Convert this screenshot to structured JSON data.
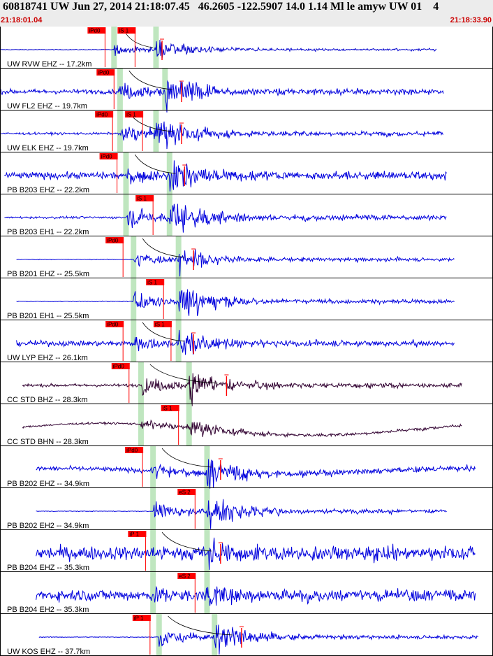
{
  "header": {
    "title": "60818741 UW Jun 27, 2014 21:18:07.45   46.2605 -122.5907 14.0 1.14 Ml le amyw UW 01    4",
    "start_time": "21:18:01.04",
    "end_time": "21:18:33.90"
  },
  "colors": {
    "trace_blue": "#0000dd",
    "trace_dark": "#300030",
    "pick_red": "#ff0000",
    "window_green": "#bfe6bf",
    "header_bg": "#ececec",
    "time_red": "#cc0000"
  },
  "chart_data": {
    "type": "line",
    "x_unit": "seconds",
    "xlim": [
      0,
      32.86
    ],
    "traces": [
      {
        "label": "UW RVW EHZ -- 17.2km",
        "color": "dark-blue",
        "start": 0,
        "end": 29.1,
        "onset": 7.6,
        "s": 10.4,
        "amp": 0.35,
        "noise": 0.02,
        "wave": 0,
        "picks": [
          {
            "text": "iPd0",
            "t": 7.0
          },
          {
            "text": "iS 1",
            "t": 9.0
          }
        ],
        "coda_mark": 10.8
      },
      {
        "label": "UW FL2 EHZ -- 19.7km",
        "color": "blue",
        "start": 0,
        "end": 29.6,
        "onset": 8.0,
        "s": 11.0,
        "amp": 0.6,
        "noise": 0.12,
        "wave": 0,
        "picks": [
          {
            "text": "iPd0",
            "t": 7.6
          }
        ],
        "coda_mark": 12.1
      },
      {
        "label": "UW ELK EHZ -- 19.7km",
        "color": "blue",
        "start": 0,
        "end": 29.6,
        "onset": 8.0,
        "s": 10.4,
        "amp": 0.6,
        "noise": 0.06,
        "wave": 0,
        "picks": [
          {
            "text": "iPd0",
            "t": 7.5
          },
          {
            "text": "iS 1",
            "t": 9.5
          }
        ],
        "coda_mark": 12.1
      },
      {
        "label": "PB B203 EHZ -- 22.2km",
        "color": "blue",
        "start": 0.3,
        "end": 29.8,
        "onset": 8.4,
        "s": 11.3,
        "amp": 0.55,
        "noise": 0.18,
        "wave": 0,
        "picks": [
          {
            "text": "iPd0",
            "t": 7.8
          }
        ],
        "coda_mark": 12.3
      },
      {
        "label": "PB B203 EH1 -- 22.2km",
        "color": "blue",
        "start": 0.3,
        "end": 29.8,
        "onset": 8.4,
        "s": 11.3,
        "amp": 0.7,
        "noise": 0.06,
        "wave": 0,
        "picks": [
          {
            "text": "iS 1",
            "t": 10.2
          }
        ],
        "coda_mark": null
      },
      {
        "label": "PB B201 EHZ -- 25.5km",
        "color": "blue",
        "start": 1.1,
        "end": 30.3,
        "onset": 8.9,
        "s": 11.9,
        "amp": 0.5,
        "noise": 0.02,
        "wave": 0,
        "picks": [
          {
            "text": "iPd0",
            "t": 8.2
          }
        ],
        "coda_mark": 12.9
      },
      {
        "label": "PB B201 EH1 -- 25.5km",
        "color": "blue",
        "start": 1.1,
        "end": 30.3,
        "onset": 8.9,
        "s": 11.9,
        "amp": 0.6,
        "noise": 0.02,
        "wave": 0,
        "picks": [
          {
            "text": "iS 1",
            "t": 10.9
          }
        ],
        "coda_mark": null
      },
      {
        "label": "UW LYP EHZ -- 26.1km",
        "color": "blue",
        "start": 1.1,
        "end": 30.3,
        "onset": 8.9,
        "s": 11.9,
        "amp": 0.5,
        "noise": 0.14,
        "wave": 0,
        "picks": [
          {
            "text": "iPd0",
            "t": 8.2
          },
          {
            "text": "iS 1",
            "t": 11.4
          }
        ],
        "coda_mark": 12.9
      },
      {
        "label": "CC STD BHZ -- 28.3km",
        "color": "dark",
        "start": 1.5,
        "end": 30.8,
        "onset": 9.4,
        "s": 12.6,
        "amp": 0.6,
        "noise": 0.08,
        "wave": 0,
        "picks": [
          {
            "text": "iPd0",
            "t": 8.6
          }
        ],
        "coda_mark": 15.1
      },
      {
        "label": "CC STD BHN -- 28.3km",
        "color": "dark",
        "start": 1.5,
        "end": 30.8,
        "onset": 9.4,
        "s": 12.6,
        "amp": 0.35,
        "noise": 0.05,
        "wave": 0.35,
        "picks": [
          {
            "text": "iS 1",
            "t": 11.9
          }
        ],
        "coda_mark": null
      },
      {
        "label": "PB B202 EHZ -- 34.9km",
        "color": "blue",
        "start": 2.4,
        "end": 31.7,
        "onset": 10.2,
        "s": 13.8,
        "amp": 0.55,
        "noise": 0.12,
        "wave": 0.15,
        "picks": [
          {
            "text": "iPd0",
            "t": 9.5
          }
        ],
        "coda_mark": 14.7
      },
      {
        "label": "PB B202 EH2 -- 34.9km",
        "color": "blue",
        "start": 2.4,
        "end": 29.8,
        "onset": 10.2,
        "s": 13.8,
        "amp": 0.6,
        "noise": 0.02,
        "wave": 0,
        "picks": [
          {
            "text": "eS 2",
            "t": 13.0
          }
        ],
        "coda_mark": null
      },
      {
        "label": "PB B204 EHZ -- 35.3km",
        "color": "blue",
        "start": 2.4,
        "end": 31.7,
        "onset": 10.2,
        "s": 13.8,
        "amp": 0.45,
        "noise": 0.35,
        "wave": 0,
        "picks": [
          {
            "text": "iP 1",
            "t": 9.7
          }
        ],
        "coda_mark": 14.7
      },
      {
        "label": "PB B204 EH2 -- 35.3km",
        "color": "blue",
        "start": 2.4,
        "end": 31.7,
        "onset": 10.2,
        "s": 13.8,
        "amp": 0.45,
        "noise": 0.3,
        "wave": 0,
        "picks": [
          {
            "text": "eS 2",
            "t": 13.0
          }
        ],
        "coda_mark": null
      },
      {
        "label": "UW KOS EHZ -- 37.7km",
        "color": "blue",
        "start": 2.6,
        "end": 31.9,
        "onset": 10.6,
        "s": 14.3,
        "amp": 0.55,
        "noise": 0.02,
        "wave": 0,
        "picks": [
          {
            "text": "iP 1",
            "t": 10.0
          }
        ],
        "coda_mark": 16.1
      }
    ]
  }
}
